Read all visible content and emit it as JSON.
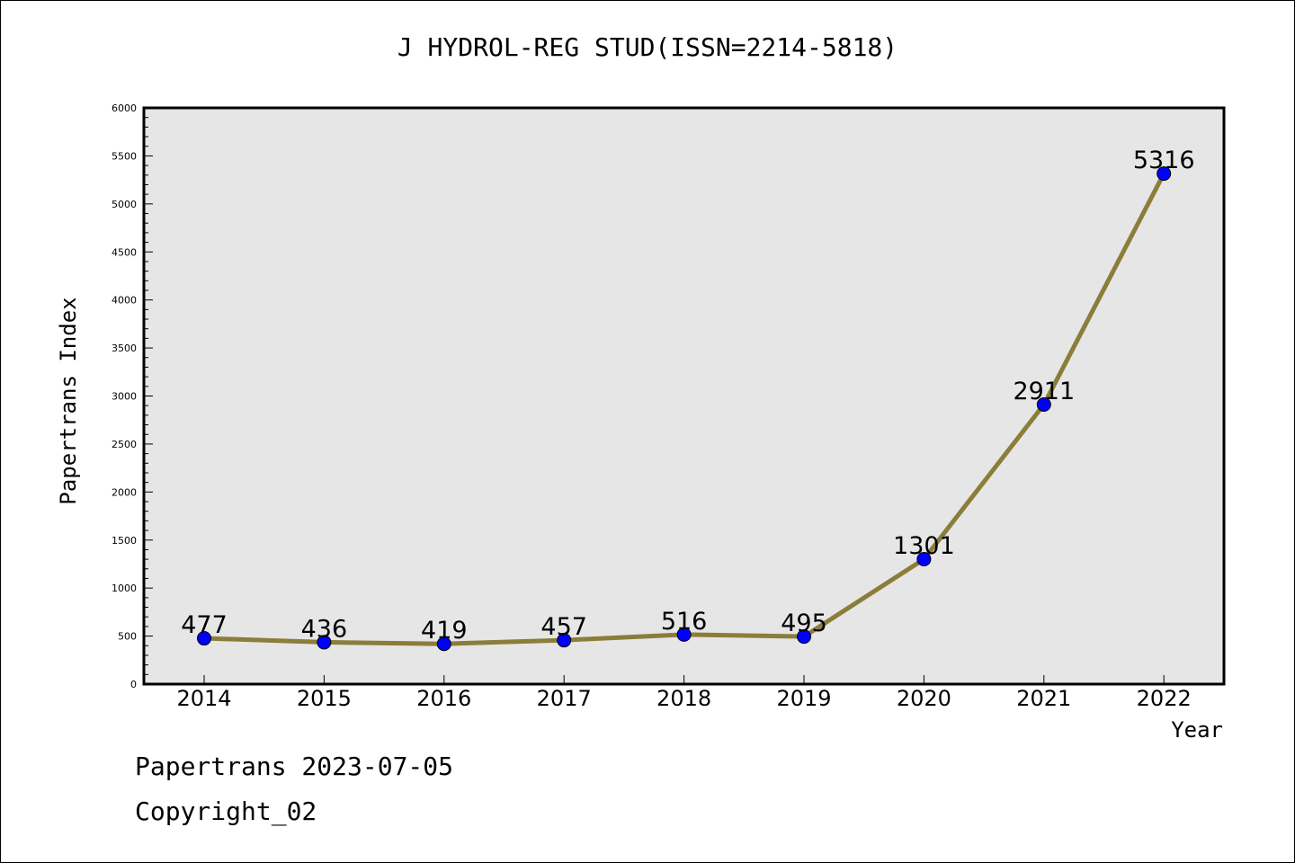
{
  "chart_data": {
    "type": "line",
    "title": "J HYDROL-REG STUD(ISSN=2214-5818)",
    "xlabel": "Year",
    "ylabel": "Papertrans Index",
    "categories": [
      "2014",
      "2015",
      "2016",
      "2017",
      "2018",
      "2019",
      "2020",
      "2021",
      "2022"
    ],
    "series": [
      {
        "values": [
          477,
          436,
          419,
          457,
          516,
          495,
          1301,
          2911,
          5316
        ]
      }
    ],
    "ylim": [
      0,
      6000
    ],
    "yticks": [
      0,
      500,
      1000,
      1500,
      2000,
      2500,
      3000,
      3500,
      4000,
      4500,
      5000,
      5500,
      6000
    ],
    "grid": false,
    "colors": {
      "line": "#8B7D3A",
      "marker": "#0000FF",
      "plot_bg": "#E6E6E6"
    }
  },
  "footer": {
    "date_line": "Papertrans 2023-07-05",
    "copyright": "Copyright_02"
  }
}
